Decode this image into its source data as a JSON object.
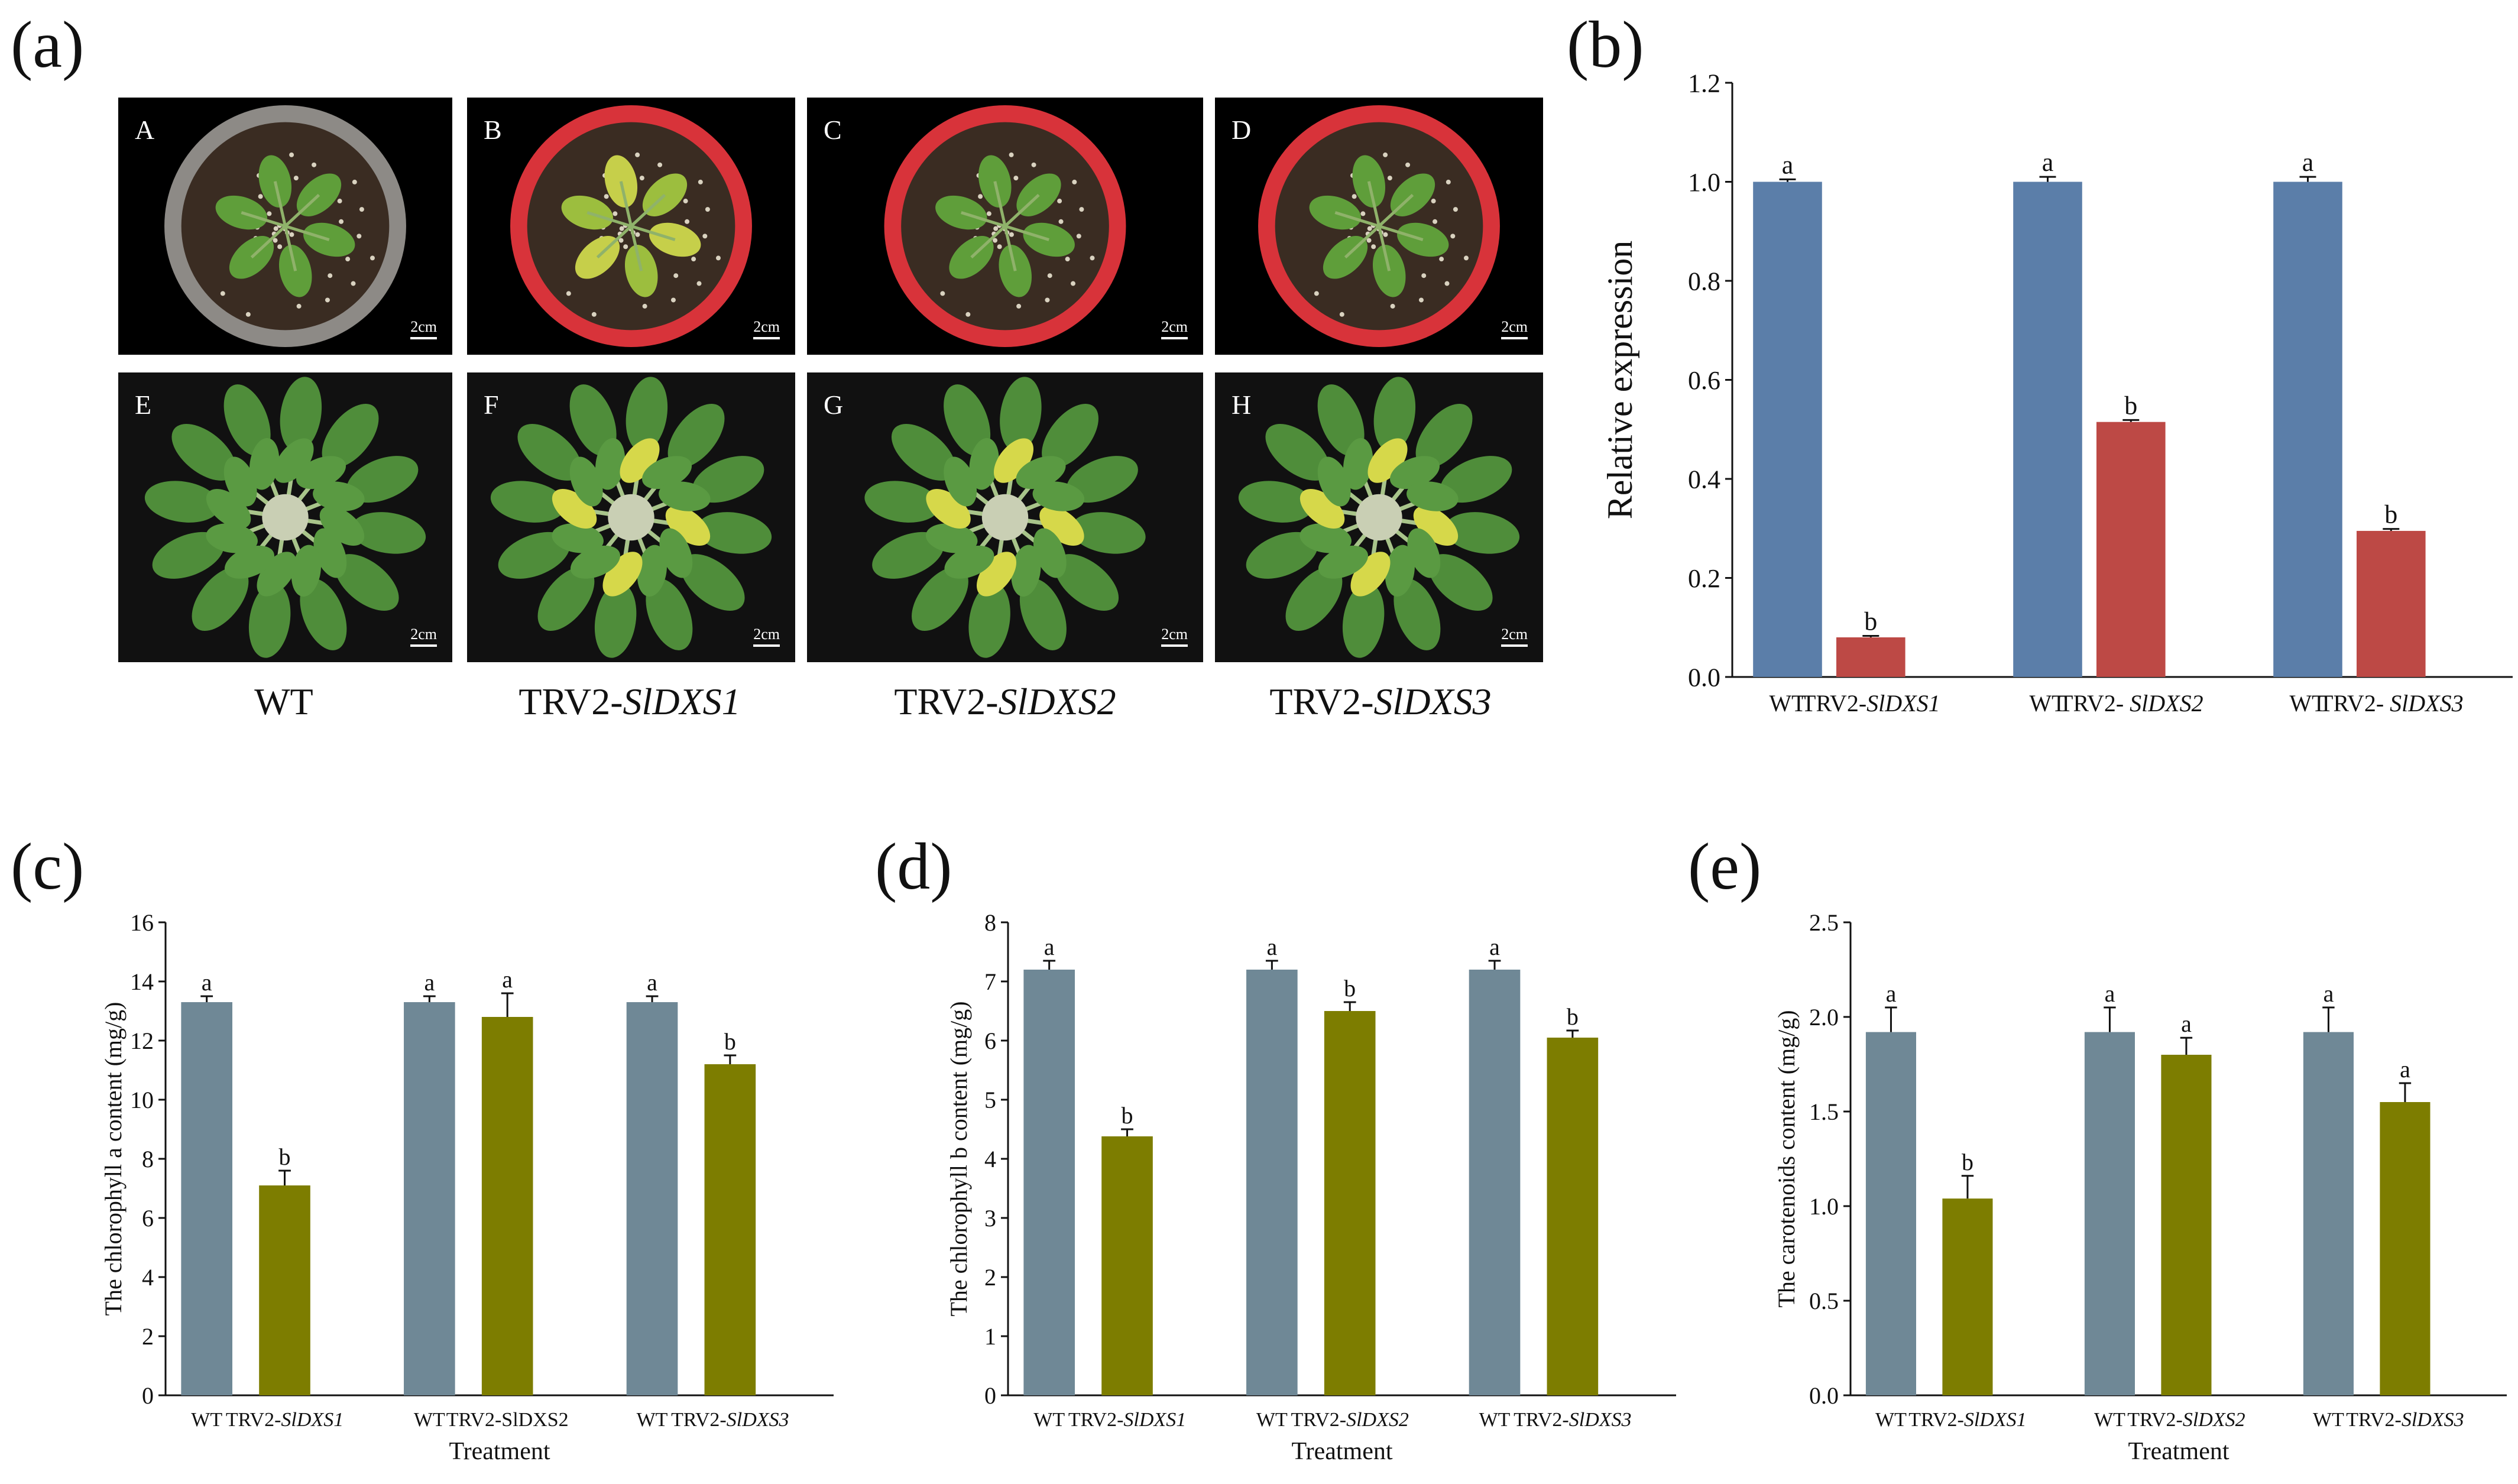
{
  "panel_letters": {
    "a": "(a)",
    "b": "(b)",
    "c": "(c)",
    "d": "(d)",
    "e": "(e)"
  },
  "photos": {
    "scale_label": "2cm",
    "labels": [
      "A",
      "B",
      "C",
      "D",
      "E",
      "F",
      "G",
      "H"
    ],
    "pot_colors": [
      "#8d8a86",
      "#d8333a",
      "#d8333a",
      "#d8333a"
    ],
    "captions": [
      {
        "prefix": "WT",
        "gene": ""
      },
      {
        "prefix": "TRV2-",
        "gene": "SlDXS1"
      },
      {
        "prefix": "TRV2-",
        "gene": "SlDXS2"
      },
      {
        "prefix": "TRV2-",
        "gene": "SlDXS3"
      }
    ]
  },
  "colors": {
    "wt_b": "#5b7ea9",
    "trv_b": "#bd4945",
    "wt_cde": "#6f8896",
    "trv_cde": "#7d7d00"
  },
  "chart_data": [
    {
      "id": "b",
      "type": "bar",
      "ylabel": "Relative expression",
      "ylim": [
        0,
        1.2
      ],
      "yticks": [
        "0.0",
        "0.2",
        "0.4",
        "0.6",
        "0.8",
        "1.0",
        "1.2"
      ],
      "categories": [
        {
          "prefix": "WT",
          "gene": ""
        },
        {
          "prefix": "TRV2-",
          "gene": "SlDXS1"
        },
        {
          "prefix": "WT",
          "gene": ""
        },
        {
          "prefix": "TRV2- ",
          "gene": "SlDXS2"
        },
        {
          "prefix": "WT",
          "gene": ""
        },
        {
          "prefix": "TRV2- ",
          "gene": "SlDXS3"
        }
      ],
      "values": [
        1.0,
        0.08,
        1.0,
        0.515,
        1.0,
        0.295
      ],
      "errors": [
        0.005,
        0.003,
        0.01,
        0.004,
        0.01,
        0.004
      ],
      "letters": [
        "a",
        "b",
        "a",
        "b",
        "a",
        "b"
      ]
    },
    {
      "id": "c",
      "type": "bar",
      "ylabel": "The  chlorophyll a content (mg/g)",
      "xlabel": "Treatment",
      "ylim": [
        0,
        16
      ],
      "yticks": [
        "0",
        "2",
        "4",
        "6",
        "8",
        "10",
        "12",
        "14",
        "16"
      ],
      "categories": [
        {
          "prefix": "WT",
          "gene": ""
        },
        {
          "prefix": "TRV2-",
          "gene": "SlDXS1"
        },
        {
          "prefix": "WT",
          "gene": ""
        },
        {
          "prefix": "TRV2-SlDXS2",
          "gene": ""
        },
        {
          "prefix": "WT",
          "gene": ""
        },
        {
          "prefix": "TRV2-",
          "gene": "SlDXS3"
        }
      ],
      "values": [
        13.3,
        7.1,
        13.3,
        12.8,
        13.3,
        11.2
      ],
      "errors": [
        0.2,
        0.5,
        0.2,
        0.8,
        0.2,
        0.3
      ],
      "letters": [
        "a",
        "b",
        "a",
        "a",
        "a",
        "b"
      ]
    },
    {
      "id": "d",
      "type": "bar",
      "ylabel": "The  chlorophyll b content (mg/g)",
      "xlabel": "Treatment",
      "ylim": [
        0,
        8
      ],
      "yticks": [
        "0",
        "1",
        "2",
        "3",
        "4",
        "5",
        "6",
        "7",
        "8"
      ],
      "categories": [
        {
          "prefix": "WT",
          "gene": ""
        },
        {
          "prefix": "TRV2-",
          "gene": "SlDXS1"
        },
        {
          "prefix": "WT",
          "gene": ""
        },
        {
          "prefix": "TRV2-",
          "gene": "SlDXS2"
        },
        {
          "prefix": "WT",
          "gene": ""
        },
        {
          "prefix": "TRV2-",
          "gene": "SlDXS3"
        }
      ],
      "values": [
        7.2,
        4.38,
        7.2,
        6.5,
        7.2,
        6.05
      ],
      "errors": [
        0.15,
        0.12,
        0.15,
        0.15,
        0.15,
        0.12
      ],
      "letters": [
        "a",
        "b",
        "a",
        "b",
        "a",
        "b"
      ]
    },
    {
      "id": "e",
      "type": "bar",
      "ylabel": "The carotenoids content (mg/g)",
      "xlabel": "Treatment",
      "ylim": [
        0,
        2.5
      ],
      "yticks": [
        "0.0",
        "0.5",
        "1.0",
        "1.5",
        "2.0",
        "2.5"
      ],
      "categories": [
        {
          "prefix": "WT",
          "gene": ""
        },
        {
          "prefix": "TRV2-",
          "gene": "SlDXS1"
        },
        {
          "prefix": "WT",
          "gene": ""
        },
        {
          "prefix": "TRV2-",
          "gene": "SlDXS2"
        },
        {
          "prefix": "WT",
          "gene": ""
        },
        {
          "prefix": "TRV2-",
          "gene": "SlDXS3"
        }
      ],
      "values": [
        1.92,
        1.04,
        1.92,
        1.8,
        1.92,
        1.55
      ],
      "errors": [
        0.13,
        0.12,
        0.13,
        0.09,
        0.13,
        0.1
      ],
      "letters": [
        "a",
        "b",
        "a",
        "a",
        "a",
        "a"
      ]
    }
  ]
}
